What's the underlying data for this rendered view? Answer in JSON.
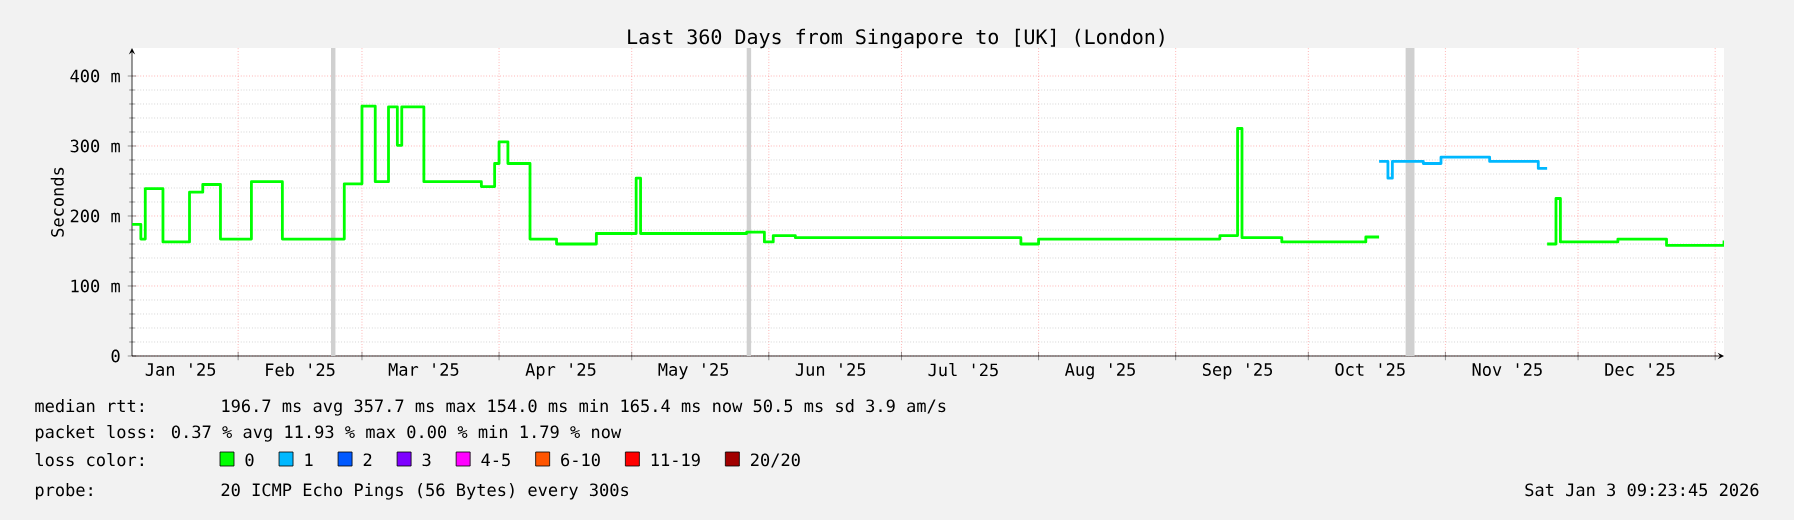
{
  "chart_data": {
    "type": "step",
    "title": "Last 360 Days from Singapore to [UK] (London)",
    "ylabel": "Seconds",
    "xlim": [
      "2025-01-08",
      "2026-01-03"
    ],
    "xticks": [
      {
        "value": "2025-01-19",
        "label": "Jan '25"
      },
      {
        "value": "2025-02-01",
        "label": null
      },
      {
        "value": "2025-02-15",
        "label": "Feb '25"
      },
      {
        "value": "2025-03-01",
        "label": null
      },
      {
        "value": "2025-03-15",
        "label": "Mar '25"
      },
      {
        "value": "2025-04-01",
        "label": null
      },
      {
        "value": "2025-04-15",
        "label": "Apr '25"
      },
      {
        "value": "2025-05-01",
        "label": null
      },
      {
        "value": "2025-05-15",
        "label": "May '25"
      },
      {
        "value": "2025-06-01",
        "label": null
      },
      {
        "value": "2025-06-15",
        "label": "Jun '25"
      },
      {
        "value": "2025-07-01",
        "label": null
      },
      {
        "value": "2025-07-15",
        "label": "Jul '25"
      },
      {
        "value": "2025-08-01",
        "label": null
      },
      {
        "value": "2025-08-15",
        "label": "Aug '25"
      },
      {
        "value": "2025-09-01",
        "label": null
      },
      {
        "value": "2025-09-15",
        "label": "Sep '25"
      },
      {
        "value": "2025-10-01",
        "label": null
      },
      {
        "value": "2025-10-15",
        "label": "Oct '25"
      },
      {
        "value": "2025-11-01",
        "label": null
      },
      {
        "value": "2025-11-15",
        "label": "Nov '25"
      },
      {
        "value": "2025-12-01",
        "label": null
      },
      {
        "value": "2025-12-15",
        "label": "Dec '25"
      },
      {
        "value": "2026-01-01",
        "label": null
      }
    ],
    "ylim": [
      0,
      440
    ],
    "yticks": [
      0,
      {
        "value": 100,
        "label": "100 m"
      },
      {
        "value": 200,
        "label": "200 m"
      },
      {
        "value": 300,
        "label": "300 m"
      },
      {
        "value": 400,
        "label": "400 m"
      }
    ],
    "grid": true,
    "legend": "bottom",
    "legend_title": "loss color:",
    "bands": [
      {
        "axis": "x",
        "from": "2025-02-22",
        "to": "2025-02-23",
        "color": "#d0d0d0"
      },
      {
        "axis": "x",
        "from": "2025-05-27",
        "to": "2025-05-28",
        "color": "#d0d0d0"
      },
      {
        "axis": "x",
        "from": "2025-10-23",
        "to": "2025-10-25",
        "color": "#d0d0d0"
      }
    ],
    "series": [
      {
        "name": "0",
        "color": "#00ff00",
        "x": [
          "2025-01-08",
          "2025-01-10",
          "2025-01-11",
          "2025-01-15",
          "2025-01-21",
          "2025-01-24",
          "2025-01-28",
          "2025-02-04",
          "2025-02-11",
          "2025-02-25",
          "2025-03-01",
          "2025-03-04",
          "2025-03-07",
          "2025-03-09",
          "2025-03-10",
          "2025-03-15",
          "2025-03-28",
          "2025-03-31",
          "2025-04-01",
          "2025-04-03",
          "2025-04-08",
          "2025-04-14",
          "2025-04-23",
          "2025-05-02",
          "2025-05-03",
          "2025-05-27",
          "2025-05-31",
          "2025-06-02",
          "2025-06-07",
          "2025-07-28",
          "2025-08-01",
          "2025-09-11",
          "2025-09-15",
          "2025-09-16",
          "2025-09-25",
          "2025-10-14",
          "2025-10-17",
          "2025-10-18",
          "2025-11-24",
          "2025-11-26",
          "2025-11-27",
          "2025-12-10",
          "2025-12-21",
          "2026-01-03"
        ],
        "values": [
          188,
          167,
          239,
          163,
          234,
          245,
          167,
          249,
          167,
          246,
          357,
          249,
          356,
          301,
          356,
          249,
          242,
          275,
          306,
          275,
          167,
          160,
          175,
          254,
          175,
          177,
          163,
          172,
          169,
          160,
          167,
          172,
          325,
          169,
          163,
          170,
          170,
          null,
          160,
          225,
          163,
          167,
          158,
          165
        ]
      },
      {
        "name": "1",
        "color": "#00b8ff",
        "x": [
          "2025-10-17",
          "2025-10-19",
          "2025-10-20",
          "2025-10-27",
          "2025-10-31",
          "2025-11-11",
          "2025-11-22",
          "2025-11-24"
        ],
        "values": [
          278,
          254,
          278,
          275,
          284,
          278,
          268,
          268
        ]
      },
      {
        "name": "2",
        "color": "#0059ff"
      },
      {
        "name": "3",
        "color": "#7e00ff"
      },
      {
        "name": "4-5",
        "color": "#ff00ff"
      },
      {
        "name": "6-10",
        "color": "#ff5500"
      },
      {
        "name": "11-19",
        "color": "#ff0000"
      },
      {
        "name": "20/20",
        "color": "#a10000"
      }
    ],
    "annotations": [
      "median rtt:",
      "196.7 ms avg  357.7 ms max  154.0 ms min  165.4 ms now  50.5 ms sd  3.9   am/s",
      "packet loss: 0.37 % avg  11.93 % max  0.00 % min  1.79 % now",
      "probe:",
      "20 ICMP Echo Pings (56 Bytes) every 300s",
      "Sat Jan  3 09:23:45 2026"
    ]
  }
}
